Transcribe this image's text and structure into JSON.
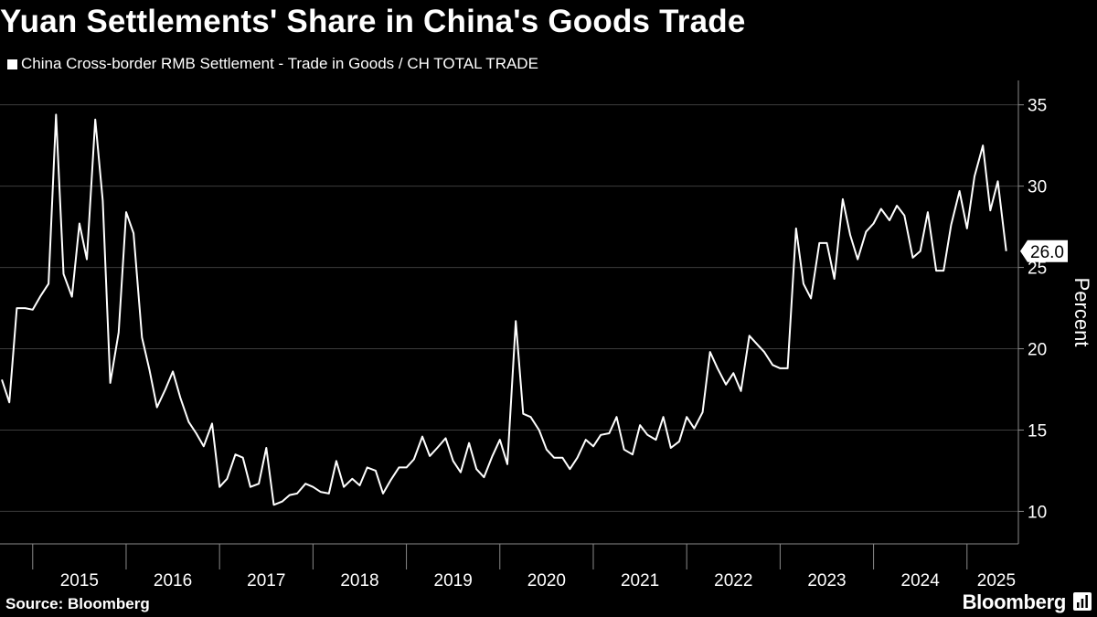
{
  "header": {
    "title": "Yuan Settlements' Share in China's Goods Trade",
    "legend_label": "China Cross-border RMB Settlement - Trade in Goods / CH TOTAL TRADE"
  },
  "footer": {
    "source": "Source: Bloomberg",
    "brand": "Bloomberg"
  },
  "icons": {
    "brand_icon": "bloomberg-terminal-icon"
  },
  "colors": {
    "background": "#000000",
    "line": "#ffffff",
    "grid": "#3c3c3c"
  },
  "chart_data": {
    "type": "line",
    "title": "Yuan Settlements' Share in China's Goods Trade",
    "ylabel": "Percent",
    "ylim": [
      8,
      36.5
    ],
    "yticks": [
      10,
      15,
      20,
      25,
      30,
      35
    ],
    "xlim": [
      2014.65,
      2025.55
    ],
    "x_tick_labels": [
      "2015",
      "2016",
      "2017",
      "2018",
      "2019",
      "2020",
      "2021",
      "2022",
      "2023",
      "2024",
      "2025"
    ],
    "grid": true,
    "legend_position": "top-left",
    "last_value_label": "26.0",
    "series": [
      {
        "name": "China Cross-border RMB Settlement - Trade in Goods / CH TOTAL TRADE",
        "x": [
          2014.67,
          2014.75,
          2014.83,
          2014.92,
          2015.0,
          2015.08,
          2015.17,
          2015.25,
          2015.33,
          2015.42,
          2015.5,
          2015.58,
          2015.67,
          2015.75,
          2015.83,
          2015.92,
          2016.0,
          2016.08,
          2016.17,
          2016.25,
          2016.33,
          2016.42,
          2016.5,
          2016.58,
          2016.67,
          2016.75,
          2016.83,
          2016.92,
          2017.0,
          2017.08,
          2017.17,
          2017.25,
          2017.33,
          2017.42,
          2017.5,
          2017.58,
          2017.67,
          2017.75,
          2017.83,
          2017.92,
          2018.0,
          2018.08,
          2018.17,
          2018.25,
          2018.33,
          2018.42,
          2018.5,
          2018.58,
          2018.67,
          2018.75,
          2018.83,
          2018.92,
          2019.0,
          2019.08,
          2019.17,
          2019.25,
          2019.33,
          2019.42,
          2019.5,
          2019.58,
          2019.67,
          2019.75,
          2019.83,
          2019.92,
          2020.0,
          2020.08,
          2020.17,
          2020.25,
          2020.33,
          2020.42,
          2020.5,
          2020.58,
          2020.67,
          2020.75,
          2020.83,
          2020.92,
          2021.0,
          2021.08,
          2021.17,
          2021.25,
          2021.33,
          2021.42,
          2021.5,
          2021.58,
          2021.67,
          2021.75,
          2021.83,
          2021.92,
          2022.0,
          2022.08,
          2022.17,
          2022.25,
          2022.33,
          2022.42,
          2022.5,
          2022.58,
          2022.67,
          2022.75,
          2022.83,
          2022.92,
          2023.0,
          2023.08,
          2023.17,
          2023.25,
          2023.33,
          2023.42,
          2023.5,
          2023.58,
          2023.67,
          2023.75,
          2023.83,
          2023.92,
          2024.0,
          2024.08,
          2024.17,
          2024.25,
          2024.33,
          2024.42,
          2024.5,
          2024.58,
          2024.67,
          2024.75,
          2024.83,
          2024.92,
          2025.0,
          2025.08,
          2025.17,
          2025.25,
          2025.33,
          2025.42
        ],
        "values": [
          18.1,
          16.7,
          22.5,
          22.5,
          22.4,
          23.2,
          24.0,
          34.4,
          24.6,
          23.2,
          27.7,
          25.5,
          34.1,
          29.1,
          17.9,
          21.0,
          28.4,
          27.1,
          20.7,
          18.7,
          16.4,
          17.5,
          18.6,
          17.0,
          15.5,
          14.8,
          14.0,
          15.4,
          11.5,
          12.0,
          13.5,
          13.3,
          11.5,
          11.7,
          13.9,
          10.4,
          10.6,
          11.0,
          11.1,
          11.7,
          11.5,
          11.2,
          11.1,
          13.1,
          11.5,
          12.0,
          11.6,
          12.7,
          12.5,
          11.1,
          11.9,
          12.7,
          12.7,
          13.2,
          14.6,
          13.4,
          13.9,
          14.5,
          13.1,
          12.4,
          14.2,
          12.6,
          12.1,
          13.4,
          14.4,
          12.9,
          21.7,
          16.0,
          15.8,
          15.0,
          13.8,
          13.3,
          13.3,
          12.6,
          13.3,
          14.4,
          14.0,
          14.7,
          14.8,
          15.8,
          13.8,
          13.5,
          15.3,
          14.7,
          14.4,
          15.8,
          13.9,
          14.3,
          15.8,
          15.1,
          16.1,
          19.8,
          18.8,
          17.8,
          18.5,
          17.4,
          20.8,
          20.3,
          19.8,
          19.0,
          18.8,
          18.8,
          27.4,
          24.0,
          23.1,
          26.5,
          26.5,
          24.3,
          29.2,
          27.0,
          25.5,
          27.2,
          27.7,
          28.6,
          27.9,
          28.8,
          28.2,
          25.6,
          26.0,
          28.4,
          24.8,
          24.8,
          27.6,
          29.7,
          27.4,
          30.6,
          32.5,
          28.5,
          30.3,
          26.0
        ]
      }
    ]
  }
}
